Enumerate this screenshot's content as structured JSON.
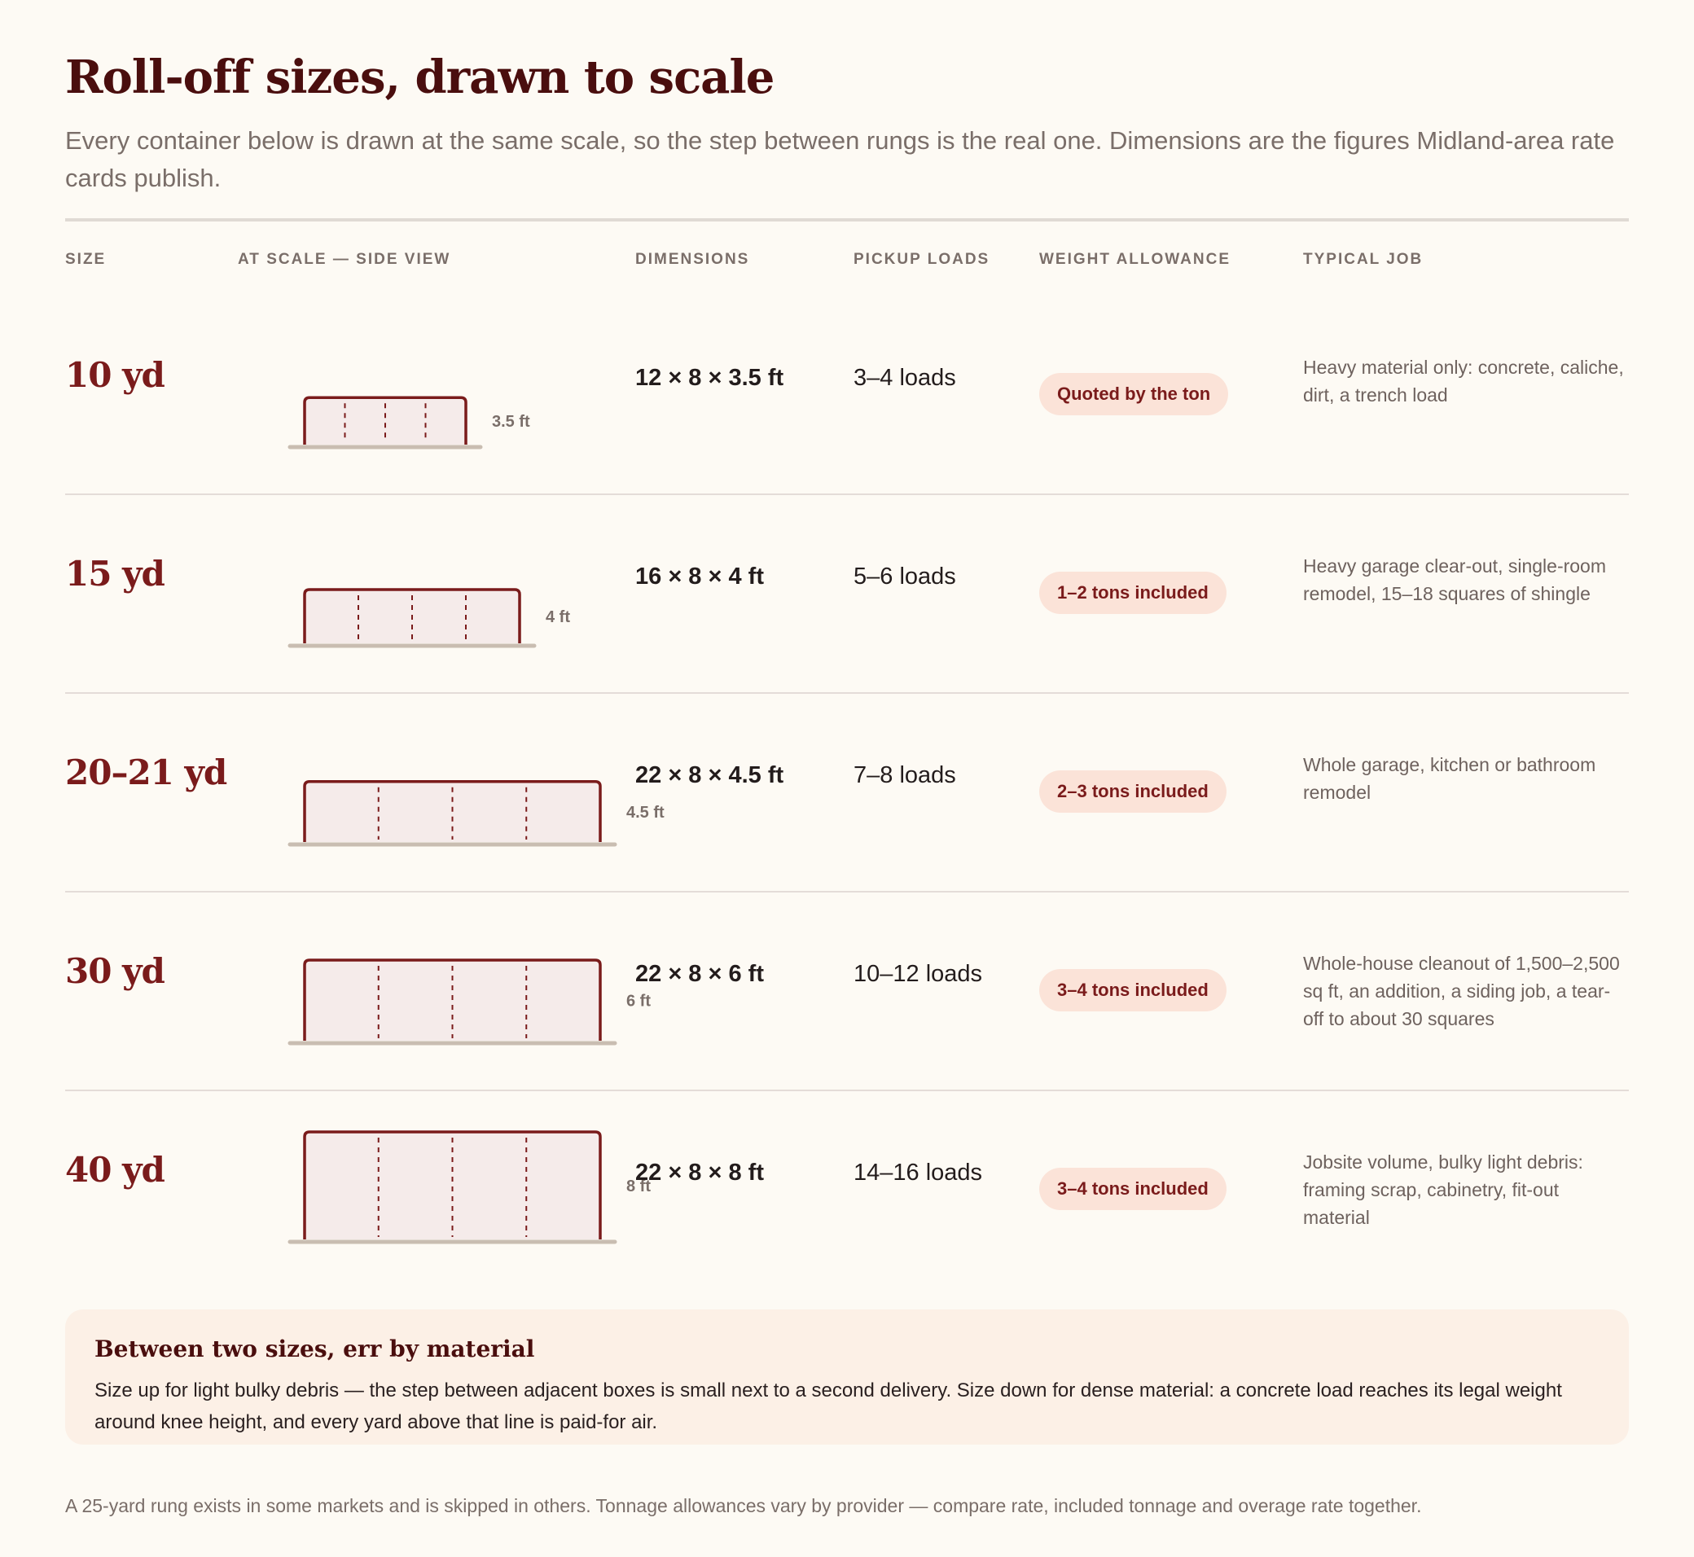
{
  "header": {
    "title": "Roll-off sizes, drawn to scale",
    "subtitle": "Every container below is drawn at the same scale, so the step between rungs is the real one. Dimensions are the figures Midland-area rate cards publish."
  },
  "columns": {
    "size": "SIZE",
    "at_scale": "AT SCALE — SIDE VIEW",
    "dimensions": "DIMENSIONS",
    "pickup_loads": "PICKUP LOADS",
    "weight_allowance": "WEIGHT ALLOWANCE",
    "typical_job": "TYPICAL JOB"
  },
  "rows": [
    {
      "size": "10 yd",
      "length_ft": 12,
      "width_ft": 8,
      "height_ft": 3.5,
      "height_label": "3.5 ft",
      "dimensions": "12 × 8 × 3.5 ft",
      "loads": "3–4 loads",
      "weight": "Quoted by the ton",
      "job": "Heavy material only: concrete, caliche, dirt, a trench load"
    },
    {
      "size": "15 yd",
      "length_ft": 16,
      "width_ft": 8,
      "height_ft": 4,
      "height_label": "4 ft",
      "dimensions": "16 × 8 × 4 ft",
      "loads": "5–6 loads",
      "weight": "1–2 tons included",
      "job": "Heavy garage clear-out, single-room remodel, 15–18 squares of shingle"
    },
    {
      "size": "20–21 yd",
      "length_ft": 22,
      "width_ft": 8,
      "height_ft": 4.5,
      "height_label": "4.5 ft",
      "dimensions": "22 × 8 × 4.5 ft",
      "loads": "7–8 loads",
      "weight": "2–3 tons included",
      "job": "Whole garage, kitchen or bathroom remodel"
    },
    {
      "size": "30 yd",
      "length_ft": 22,
      "width_ft": 8,
      "height_ft": 6,
      "height_label": "6 ft",
      "dimensions": "22 × 8 × 6 ft",
      "loads": "10–12 loads",
      "weight": "3–4 tons included",
      "job": "Whole-house cleanout of 1,500–2,500 sq ft, an addition, a siding job, a tear-off to about 30 squares"
    },
    {
      "size": "40 yd",
      "length_ft": 22,
      "width_ft": 8,
      "height_ft": 8,
      "height_label": "8 ft",
      "dimensions": "22 × 8 × 8 ft",
      "loads": "14–16 loads",
      "weight": "3–4 tons included",
      "job": "Jobsite volume, bulky light debris: framing scrap, cabinetry, fit-out material"
    }
  ],
  "callout": {
    "title": "Between two sizes, err by material",
    "body": "Size up for light bulky debris — the step between adjacent boxes is small next to a second delivery. Size down for dense material: a concrete load reaches its legal weight around knee height, and every yard above that line is paid-for air."
  },
  "footnote": "A 25-yard rung exists in some markets and is skipped in others. Tonnage allowances vary by provider — compare rate, included tonnage and overage rate together.",
  "colors": {
    "accent": "#7a1b1b",
    "title": "#4a0e0e",
    "box_fill": "#f5ebea",
    "ground": "#c9bdb1",
    "pill_bg": "#fbe3d8",
    "background": "#fdfaf4"
  }
}
